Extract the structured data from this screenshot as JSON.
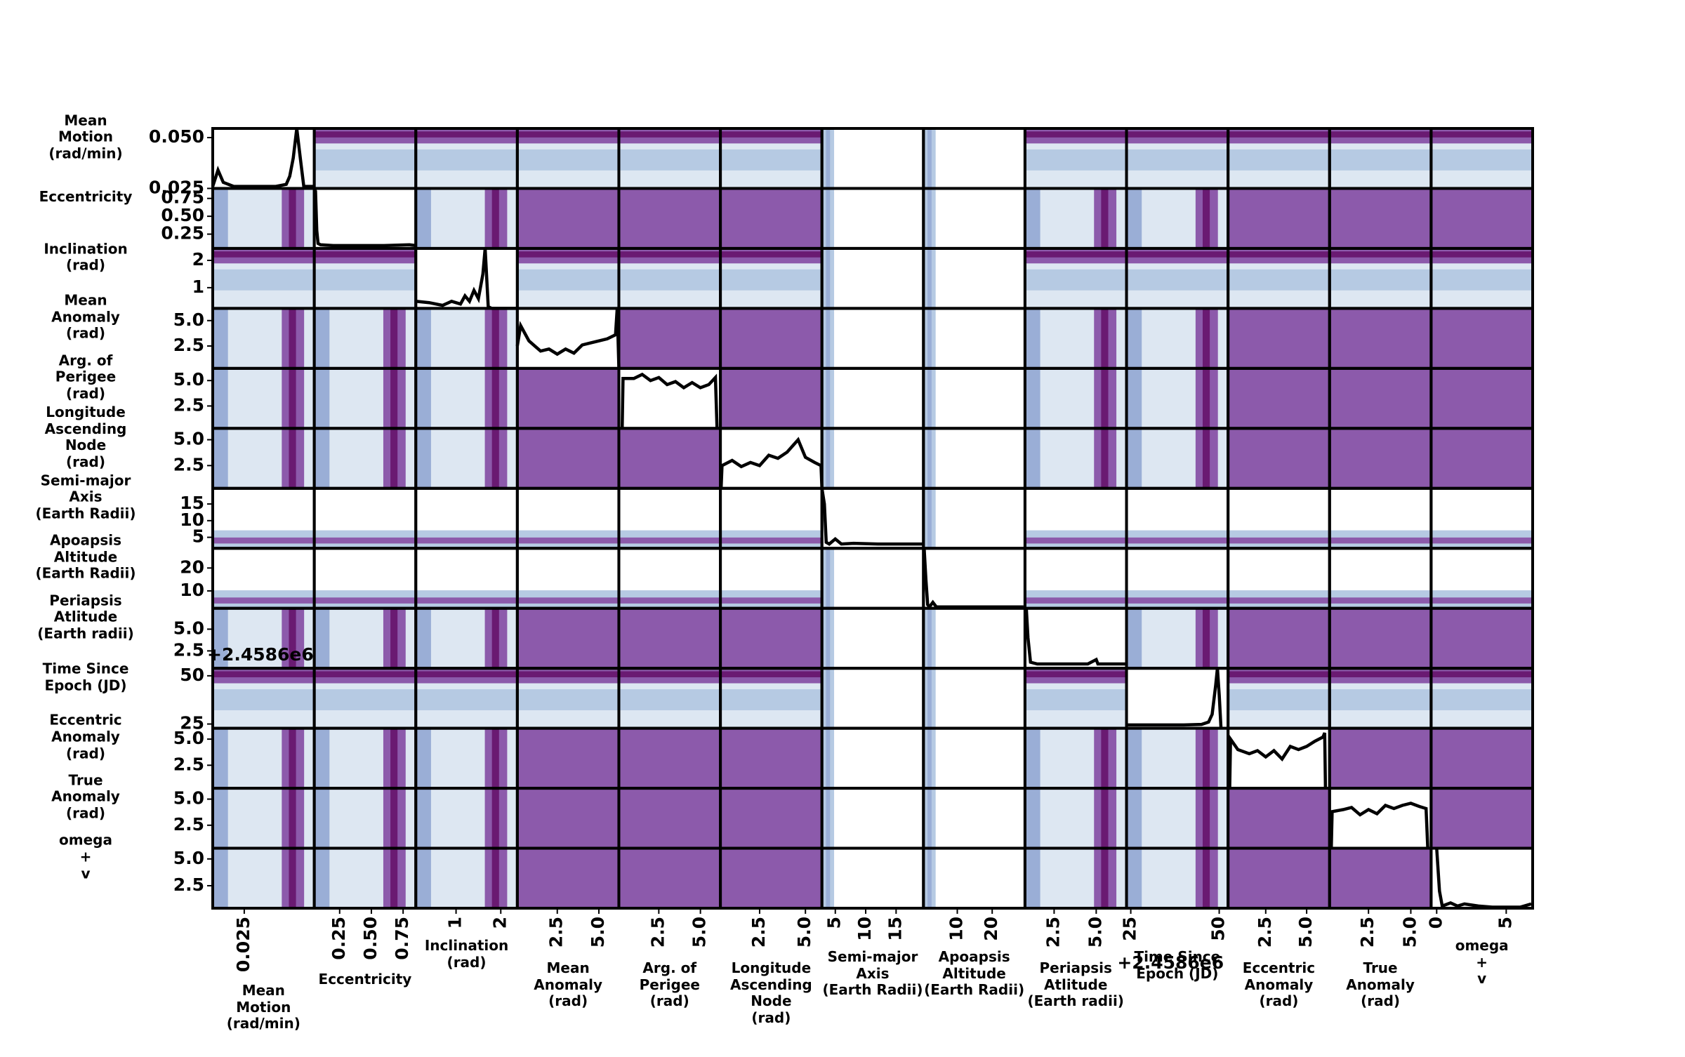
{
  "chart_data": {
    "type": "scatter_matrix",
    "offset_label": "+2.4586e6",
    "contour_colors": [
      "#ffffff",
      "#dde7f2",
      "#b6cae3",
      "#9aaed6",
      "#8c5aab",
      "#6a1a72"
    ],
    "kde_color": "#000000",
    "variables": [
      {
        "label": "Mean\nMotion\n(rad/min)",
        "xlim": [
          0.016,
          0.045
        ],
        "xticks": [
          0.025
        ],
        "ylim": [
          0.025,
          0.0545
        ],
        "yticks": [
          0.025,
          {
            "value": 0.05,
            "label": "0.050"
          }
        ],
        "kde": {
          "x": [
            0.016,
            0.0175,
            0.019,
            0.022,
            0.026,
            0.03,
            0.034,
            0.037,
            0.038,
            0.039,
            0.04,
            0.041,
            0.042,
            0.045
          ],
          "y": [
            0.026,
            0.034,
            0.028,
            0.026,
            0.026,
            0.026,
            0.026,
            0.027,
            0.031,
            0.04,
            0.0545,
            0.04,
            0.026,
            0.026
          ]
        }
      },
      {
        "label": "Eccentricity",
        "xlim": [
          0.05,
          0.85
        ],
        "xticks": [
          0.25,
          {
            "value": 0.5,
            "label": "0.50"
          },
          0.75
        ],
        "ylim": [
          0.05,
          0.89
        ],
        "yticks": [
          0.25,
          {
            "value": 0.5,
            "label": "0.50"
          },
          0.75
        ],
        "kde": {
          "x": [
            0.05,
            0.06,
            0.07,
            0.08,
            0.1,
            0.2,
            0.4,
            0.6,
            0.8,
            0.85
          ],
          "y": [
            0.89,
            0.85,
            0.3,
            0.12,
            0.1,
            0.09,
            0.09,
            0.09,
            0.1,
            0.09
          ]
        }
      },
      {
        "label": "Inclination\n(rad)",
        "xlim": [
          0.1,
          2.37
        ],
        "xticks": [
          1,
          2
        ],
        "ylim": [
          0.24,
          2.44
        ],
        "yticks": [
          1,
          2
        ],
        "kde": {
          "x": [
            0.1,
            0.4,
            0.7,
            0.9,
            1.1,
            1.2,
            1.3,
            1.4,
            1.5,
            1.6,
            1.65,
            1.72,
            1.8,
            2.37
          ],
          "y": [
            0.5,
            0.45,
            0.35,
            0.5,
            0.4,
            0.7,
            0.5,
            0.9,
            0.6,
            1.5,
            2.44,
            0.3,
            0.24,
            0.24
          ]
        }
      },
      {
        "label": "Mean\nAnomaly\n(rad)",
        "xlim": [
          0.1,
          6.2
        ],
        "xticks": [
          2.5,
          {
            "value": 5,
            "label": "5.0"
          }
        ],
        "ylim": [
          0.3,
          6.2
        ],
        "yticks": [
          2.5,
          {
            "value": 5,
            "label": "5.0"
          }
        ],
        "kde": {
          "x": [
            0.1,
            0.3,
            0.8,
            1.5,
            2,
            2.5,
            3,
            3.5,
            4,
            4.5,
            5,
            5.5,
            6,
            6.1,
            6.2
          ],
          "y": [
            2.5,
            4.5,
            3,
            2,
            2.2,
            1.7,
            2.2,
            1.8,
            2.6,
            2.8,
            3,
            3.2,
            3.6,
            6.2,
            0.3
          ]
        }
      },
      {
        "label": "Arg. of\nPerigee\n(rad)",
        "xlim": [
          0.1,
          6.2
        ],
        "xticks": [
          2.5,
          {
            "value": 5,
            "label": "5.0"
          }
        ],
        "ylim": [
          0.3,
          6.2
        ],
        "yticks": [
          2.5,
          {
            "value": 5,
            "label": "5.0"
          }
        ],
        "kde": {
          "x": [
            0.3,
            0.35,
            1,
            1.5,
            2,
            2.5,
            3,
            3.5,
            4,
            4.5,
            5,
            5.5,
            5.9,
            6
          ],
          "y": [
            0.3,
            5.2,
            5.2,
            5.6,
            5,
            5.3,
            4.6,
            4.9,
            4.3,
            4.8,
            4.3,
            4.6,
            5.3,
            0.3
          ]
        }
      },
      {
        "label": "Longitude\nAscending\nNode\n(rad)",
        "xlim": [
          0.36,
          5.9
        ],
        "xticks": [
          2.5,
          {
            "value": 5,
            "label": "5.0"
          }
        ],
        "ylim": [
          0.3,
          6.1
        ],
        "yticks": [
          2.5,
          {
            "value": 5,
            "label": "5.0"
          }
        ],
        "kde": {
          "x": [
            0.4,
            0.45,
            1,
            1.5,
            2,
            2.5,
            3,
            3.5,
            4,
            4.3,
            4.6,
            5,
            5.5,
            5.85,
            5.9
          ],
          "y": [
            0.3,
            2.5,
            3,
            2.4,
            2.8,
            2.5,
            3.5,
            3.2,
            3.8,
            4.4,
            5,
            3.3,
            2.8,
            2.5,
            0.3
          ]
        }
      },
      {
        "label": "Semi-major\nAxis\n(Earth Radii)",
        "xlim": [
          2.8,
          19.5
        ],
        "xticks": [
          5,
          10,
          15
        ],
        "ylim": [
          1.7,
          19.7
        ],
        "yticks": [
          5,
          10,
          15
        ],
        "kde": {
          "x": [
            2.8,
            3.2,
            3.5,
            4,
            5,
            6,
            8,
            12,
            16,
            19.5
          ],
          "y": [
            19.7,
            15,
            3.5,
            3,
            4.5,
            3,
            3.2,
            3,
            3,
            3
          ]
        }
      },
      {
        "label": "Apoapsis\nAltitude\n(Earth Radii)",
        "xlim": [
          0.3,
          29.4
        ],
        "xticks": [
          10,
          20
        ],
        "ylim": [
          2.4,
          28.6
        ],
        "yticks": [
          10,
          20
        ],
        "kde": {
          "x": [
            0.5,
            1,
            1.5,
            2,
            3,
            4,
            8,
            15,
            29
          ],
          "y": [
            28.6,
            15,
            4,
            3,
            5,
            3,
            3,
            3,
            3
          ]
        }
      },
      {
        "label": "Periapsis\nAtlitude\n(Earth radii)",
        "xlim": [
          0.77,
          6.8
        ],
        "xticks": [
          2.5,
          {
            "value": 5,
            "label": "5.0"
          }
        ],
        "ylim": [
          0.5,
          7.4
        ],
        "yticks": [
          2.5,
          {
            "value": 5,
            "label": "5.0"
          }
        ],
        "kde": {
          "x": [
            0.85,
            0.95,
            1.1,
            1.5,
            3,
            4.5,
            5,
            5.1,
            5.5,
            6.8
          ],
          "y": [
            7.4,
            4,
            1.2,
            1,
            1,
            1,
            1.5,
            1,
            1,
            1
          ]
        }
      },
      {
        "label": "Time Since\nEpoch (JD)",
        "xlim": [
          23.8,
          52.5
        ],
        "xticks": [
          25,
          50
        ],
        "ylim": [
          22.8,
          53.9
        ],
        "yticks": [
          25,
          50
        ],
        "kde": {
          "x": [
            23.8,
            30,
            40,
            45,
            47,
            48,
            49,
            49.5,
            50,
            50.5
          ],
          "y": [
            24.5,
            24.5,
            24.5,
            24.8,
            26,
            30,
            45,
            53.9,
            40,
            22.8
          ]
        }
      },
      {
        "label": "Eccentric\nAnomaly\n(rad)",
        "xlim": [
          0.2,
          6.4
        ],
        "xticks": [
          2.5,
          {
            "value": 5,
            "label": "5.0"
          }
        ],
        "ylim": [
          0.3,
          6.04
        ],
        "yticks": [
          2.5,
          {
            "value": 5,
            "label": "5.0"
          }
        ],
        "kde": {
          "x": [
            0.3,
            0.35,
            0.8,
            1.5,
            2,
            2.5,
            3,
            3.5,
            4,
            4.5,
            5,
            5.5,
            6,
            6.1,
            6.15
          ],
          "y": [
            0.3,
            5,
            4,
            3.6,
            3.9,
            3.3,
            3.9,
            3.1,
            4.3,
            4,
            4.3,
            4.8,
            5.2,
            5.6,
            0.3
          ]
        }
      },
      {
        "label": "True\nAnomaly\n(rad)",
        "xlim": [
          0.2,
          6.2
        ],
        "xticks": [
          2.5,
          {
            "value": 5,
            "label": "5.0"
          }
        ],
        "ylim": [
          0.3,
          6.04
        ],
        "yticks": [
          2.5,
          {
            "value": 5,
            "label": "5.0"
          }
        ],
        "kde": {
          "x": [
            0.3,
            0.35,
            1,
            1.5,
            2,
            2.5,
            3,
            3.5,
            4,
            4.5,
            5,
            5.5,
            5.9,
            6
          ],
          "y": [
            0.3,
            3.8,
            4,
            4.2,
            3.5,
            4,
            3.6,
            4.4,
            4.1,
            4.4,
            4.6,
            4.3,
            4.1,
            0.3
          ]
        }
      },
      {
        "label": "omega\n+\nv",
        "xlim": [
          -0.4,
          6.9
        ],
        "xticks": [
          0,
          5
        ],
        "ylim": [
          0.4,
          6
        ],
        "yticks": [
          2.5,
          {
            "value": 5,
            "label": "5.0"
          }
        ],
        "kde": {
          "x": [
            0,
            0.2,
            0.4,
            1,
            1.5,
            2,
            3,
            4,
            5,
            6,
            6.8
          ],
          "y": [
            6,
            2,
            0.6,
            0.9,
            0.6,
            0.8,
            0.6,
            0.5,
            0.5,
            0.5,
            0.8
          ]
        }
      }
    ]
  }
}
